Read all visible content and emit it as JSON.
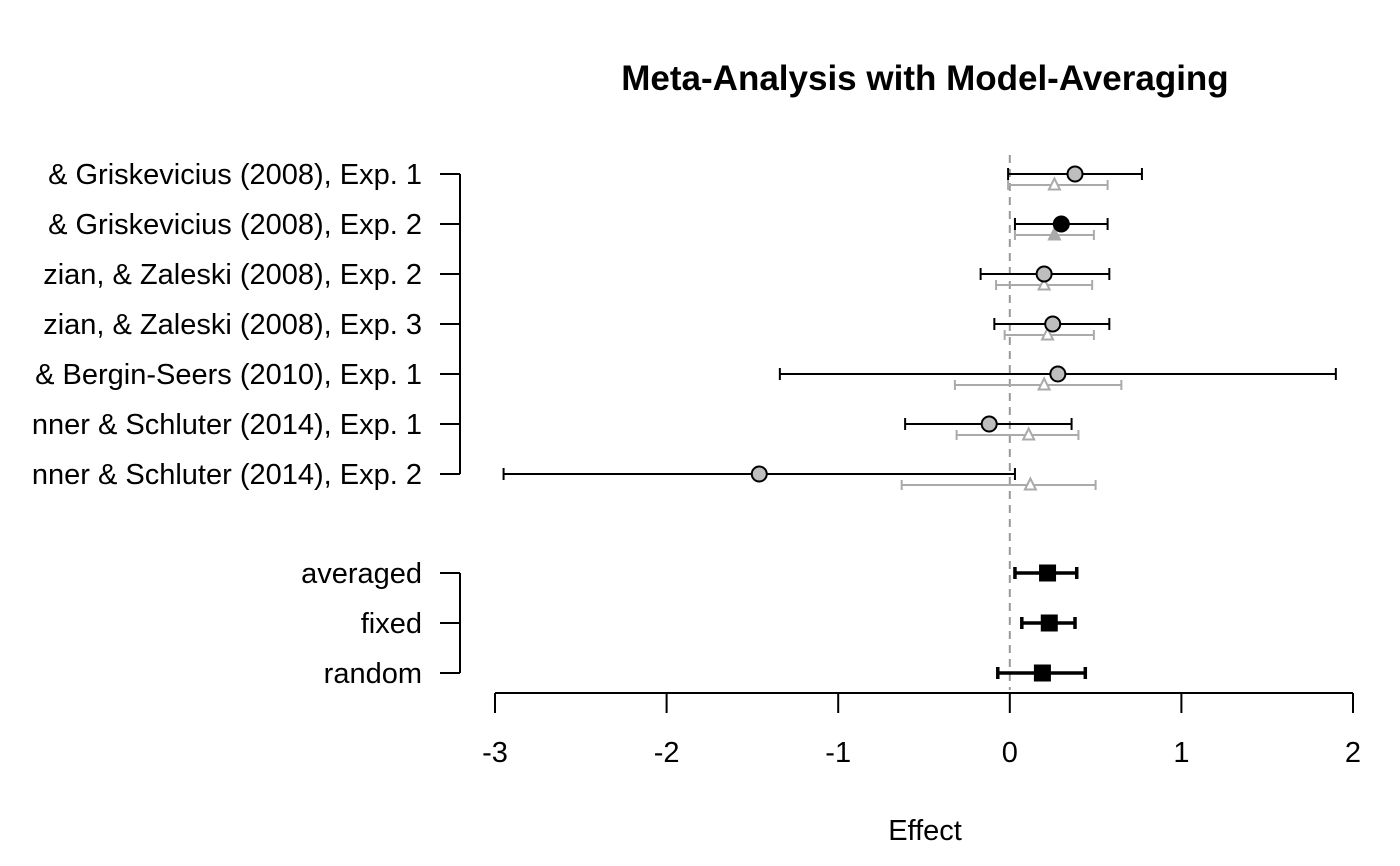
{
  "chart_data": {
    "type": "forest",
    "title": "Meta-Analysis with Model-Averaging",
    "xlabel": "Effect",
    "xlim": [
      -3,
      2
    ],
    "x_ticks": [
      -3,
      -2,
      -1,
      0,
      1,
      2
    ],
    "x_tick_labels": [
      "-3",
      "-2",
      "-1",
      "0",
      "1",
      "2"
    ],
    "reference_line": 0,
    "colors": {
      "observed": "#000000",
      "estimated": "#aaaaaa",
      "point_fill": "#bebebe",
      "summary": "#000000"
    },
    "studies": [
      {
        "label": "& Griskevicius (2008), Exp. 1",
        "observed": {
          "est": 0.38,
          "lo": -0.01,
          "hi": 0.77,
          "marker": "circle-open"
        },
        "estimated": {
          "est": 0.26,
          "lo": -0.01,
          "hi": 0.57,
          "marker": "triangle-open"
        }
      },
      {
        "label": "& Griskevicius  (2008), Exp. 2",
        "observed": {
          "est": 0.3,
          "lo": 0.03,
          "hi": 0.57,
          "marker": "circle-filled"
        },
        "estimated": {
          "est": 0.26,
          "lo": 0.03,
          "hi": 0.49,
          "marker": "triangle-filled"
        }
      },
      {
        "label": "zian, & Zaleski (2008), Exp. 2",
        "observed": {
          "est": 0.2,
          "lo": -0.17,
          "hi": 0.58,
          "marker": "circle-open"
        },
        "estimated": {
          "est": 0.2,
          "lo": -0.08,
          "hi": 0.48,
          "marker": "triangle-open"
        }
      },
      {
        "label": "zian, & Zaleski (2008), Exp. 3",
        "observed": {
          "est": 0.25,
          "lo": -0.09,
          "hi": 0.58,
          "marker": "circle-open"
        },
        "estimated": {
          "est": 0.22,
          "lo": -0.03,
          "hi": 0.49,
          "marker": "triangle-open"
        }
      },
      {
        "label": "& Bergin-Seers (2010), Exp. 1",
        "observed": {
          "est": 0.28,
          "lo": -1.34,
          "hi": 1.9,
          "marker": "circle-open"
        },
        "estimated": {
          "est": 0.2,
          "lo": -0.32,
          "hi": 0.65,
          "marker": "triangle-open"
        }
      },
      {
        "label": "nner & Schluter (2014), Exp. 1",
        "observed": {
          "est": -0.12,
          "lo": -0.61,
          "hi": 0.36,
          "marker": "circle-open"
        },
        "estimated": {
          "est": 0.11,
          "lo": -0.31,
          "hi": 0.4,
          "marker": "triangle-open"
        }
      },
      {
        "label": "nner & Schluter (2014), Exp. 2",
        "observed": {
          "est": -1.46,
          "lo": -2.95,
          "hi": 0.03,
          "marker": "circle-open"
        },
        "estimated": {
          "est": 0.12,
          "lo": -0.63,
          "hi": 0.5,
          "marker": "triangle-open"
        }
      }
    ],
    "summaries": [
      {
        "label": "averaged",
        "est": 0.22,
        "lo": 0.03,
        "hi": 0.39
      },
      {
        "label": "fixed",
        "est": 0.23,
        "lo": 0.07,
        "hi": 0.38
      },
      {
        "label": "random",
        "est": 0.19,
        "lo": -0.07,
        "hi": 0.44
      }
    ]
  }
}
